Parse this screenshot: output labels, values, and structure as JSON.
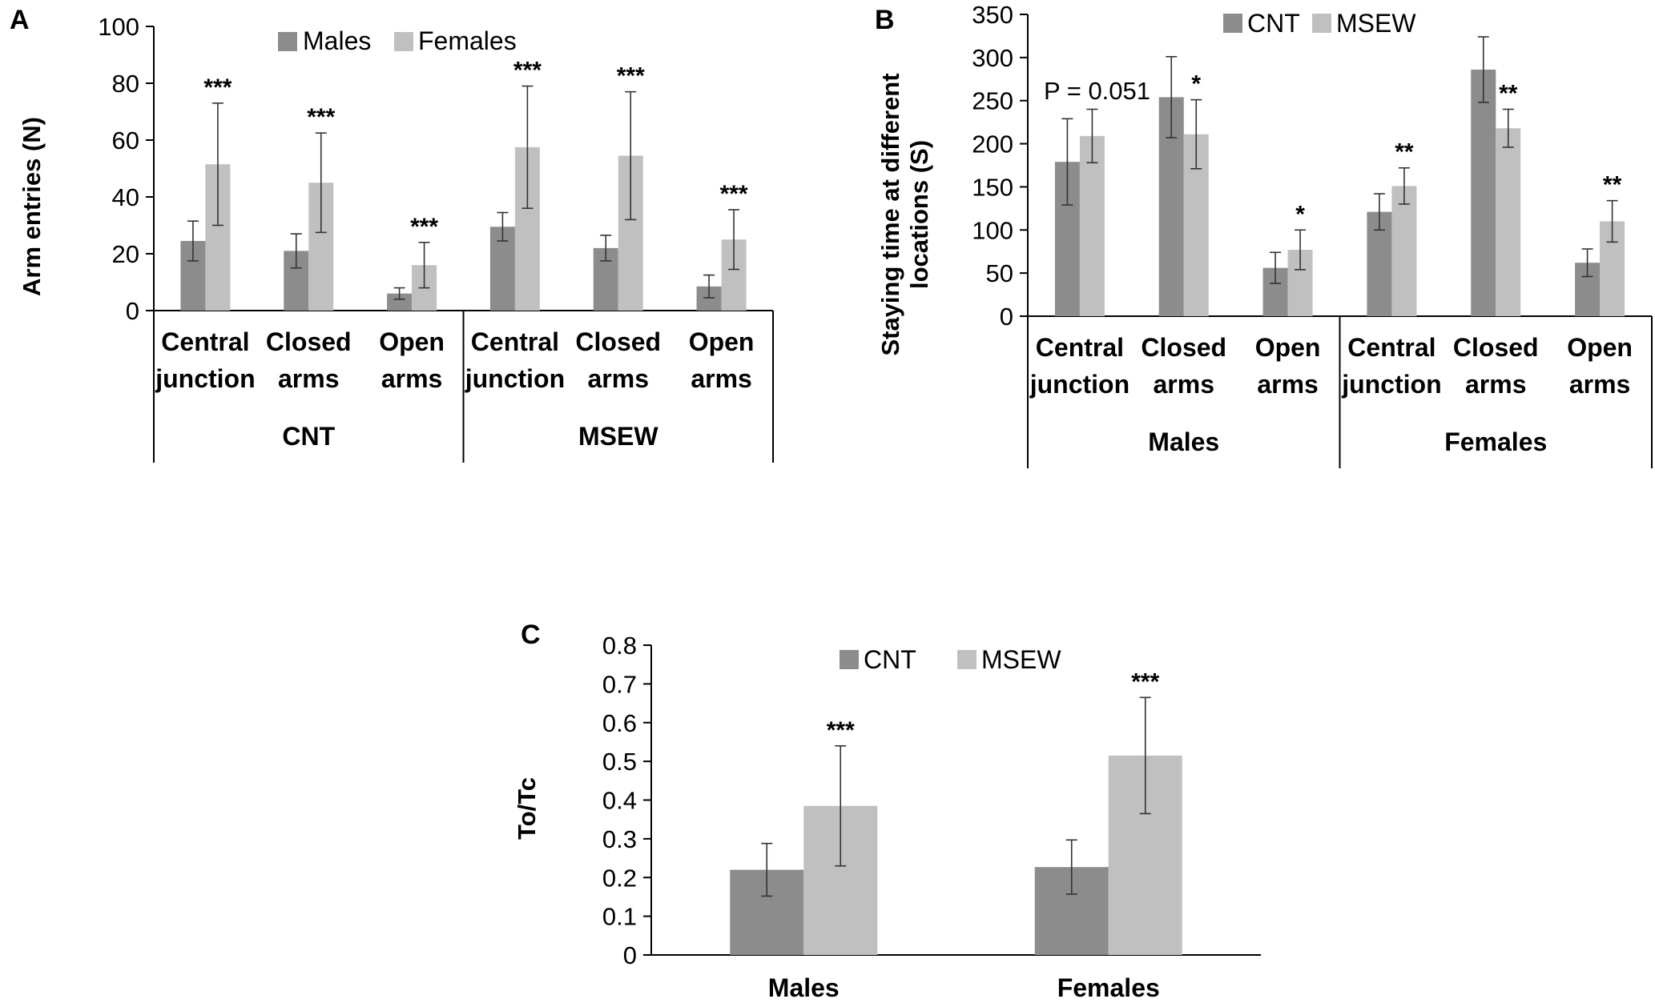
{
  "colors": {
    "series1": "#8c8c8c",
    "series2": "#c0c0c0",
    "axis": "#000000",
    "error": "#333333"
  },
  "chart_data": [
    {
      "panel": "A",
      "type": "bar",
      "ylabel": "Arm entries (N)",
      "ylim": [
        0,
        100
      ],
      "yticks": [
        0,
        20,
        40,
        60,
        80,
        100
      ],
      "groups": [
        {
          "label": "CNT",
          "categories": [
            [
              "Central",
              "junction"
            ],
            [
              "Closed",
              "arms"
            ],
            [
              "Open",
              "arms"
            ]
          ]
        },
        {
          "label": "MSEW",
          "categories": [
            [
              "Central",
              "junction"
            ],
            [
              "Closed",
              "arms"
            ],
            [
              "Open",
              "arms"
            ]
          ]
        }
      ],
      "series": [
        {
          "name": "Males",
          "values": [
            24.5,
            21,
            6,
            29.5,
            22,
            8.5
          ],
          "errors": [
            7,
            6,
            2,
            5,
            4.5,
            4
          ]
        },
        {
          "name": "Females",
          "values": [
            51.5,
            45,
            16,
            57.5,
            54.5,
            25
          ],
          "errors": [
            21.5,
            17.5,
            8,
            21.5,
            22.5,
            10.5
          ]
        }
      ],
      "annotations": [
        {
          "index": 0,
          "text": "***"
        },
        {
          "index": 1,
          "text": "***"
        },
        {
          "index": 2,
          "text": "***"
        },
        {
          "index": 3,
          "text": "***"
        },
        {
          "index": 4,
          "text": "***"
        },
        {
          "index": 5,
          "text": "***"
        }
      ]
    },
    {
      "panel": "B",
      "type": "bar",
      "ylabel_lines": [
        "Staying time at different",
        "locations (S)"
      ],
      "ylim": [
        0,
        350
      ],
      "yticks": [
        0,
        50,
        100,
        150,
        200,
        250,
        300,
        350
      ],
      "groups": [
        {
          "label": "Males",
          "categories": [
            [
              "Central",
              "junction"
            ],
            [
              "Closed",
              "arms"
            ],
            [
              "Open",
              "arms"
            ]
          ]
        },
        {
          "label": "Females",
          "categories": [
            [
              "Central",
              "junction"
            ],
            [
              "Closed",
              "arms"
            ],
            [
              "Open",
              "arms"
            ]
          ]
        }
      ],
      "series": [
        {
          "name": "CNT",
          "values": [
            179,
            254,
            56,
            121,
            286,
            62
          ],
          "errors": [
            50,
            47,
            18,
            21,
            38,
            16
          ]
        },
        {
          "name": "MSEW",
          "values": [
            209,
            211,
            77,
            151,
            218,
            110
          ],
          "errors": [
            31,
            40,
            23,
            21,
            22,
            24
          ]
        }
      ],
      "annotations": [
        {
          "index": 1,
          "text": "*"
        },
        {
          "index": 2,
          "text": "*"
        },
        {
          "index": 3,
          "text": "**"
        },
        {
          "index": 4,
          "text": "**"
        },
        {
          "index": 5,
          "text": "**"
        }
      ],
      "note": "P = 0.051"
    },
    {
      "panel": "C",
      "type": "bar",
      "ylabel": "To/Tc",
      "ylim": [
        0,
        0.8
      ],
      "yticks": [
        "0",
        "0.1",
        "0.2",
        "0.3",
        "0.4",
        "0.5",
        "0.6",
        "0.7",
        "0.8"
      ],
      "categories": [
        "Males",
        "Females"
      ],
      "series": [
        {
          "name": "CNT",
          "values": [
            0.22,
            0.227
          ],
          "errors": [
            0.068,
            0.07
          ]
        },
        {
          "name": "MSEW",
          "values": [
            0.385,
            0.515
          ],
          "errors": [
            0.155,
            0.15
          ]
        }
      ],
      "annotations": [
        {
          "index": 0,
          "text": "***"
        },
        {
          "index": 1,
          "text": "***"
        }
      ]
    }
  ]
}
